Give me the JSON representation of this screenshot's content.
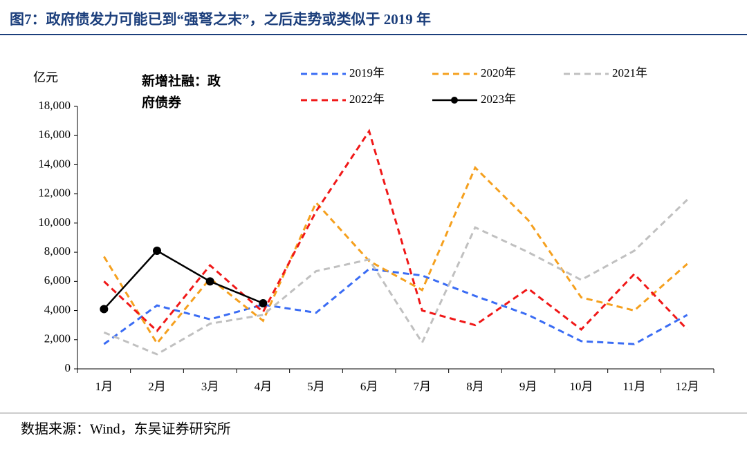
{
  "chart_data": {
    "type": "line",
    "title": "图7：政府债发力可能已到“强弩之末”，之后走势或类似于 2019 年",
    "y_label": "亿元",
    "annotation": [
      "新增社融：政",
      "府债券"
    ],
    "source": "数据来源：Wind，东吴证券研究所",
    "categories": [
      "1月",
      "2月",
      "3月",
      "4月",
      "5月",
      "6月",
      "7月",
      "8月",
      "9月",
      "10月",
      "11月",
      "12月"
    ],
    "series": [
      {
        "name": "2019年",
        "color": "#3a6cf4",
        "dashed": true,
        "markers": false,
        "values": [
          1700,
          4350,
          3400,
          4400,
          3850,
          6850,
          6400,
          5000,
          3700,
          1900,
          1700,
          3700
        ]
      },
      {
        "name": "2020年",
        "color": "#f5a01e",
        "dashed": true,
        "markers": false,
        "values": [
          7700,
          1750,
          6200,
          3300,
          11400,
          7400,
          5400,
          13800,
          10200,
          4900,
          4000,
          7200
        ]
      },
      {
        "name": "2021年",
        "color": "#c0c0c0",
        "dashed": true,
        "markers": false,
        "values": [
          2500,
          1000,
          3100,
          3700,
          6700,
          7500,
          1800,
          9700,
          8000,
          6100,
          8100,
          11600
        ]
      },
      {
        "name": "2022年",
        "color": "#f01818",
        "dashed": true,
        "markers": false,
        "values": [
          6000,
          2600,
          7100,
          3900,
          10800,
          16300,
          4000,
          3000,
          5500,
          2700,
          6500,
          2700
        ]
      },
      {
        "name": "2023年",
        "color": "#000000",
        "dashed": false,
        "markers": true,
        "values": [
          4100,
          8100,
          6000,
          4500,
          null,
          null,
          null,
          null,
          null,
          null,
          null,
          null
        ]
      }
    ],
    "ylim": [
      0,
      18000
    ],
    "yticks": [
      0,
      {
        "value": 2000,
        "label": "2,000"
      },
      {
        "value": 4000,
        "label": "4,000"
      },
      {
        "value": 6000,
        "label": "6,000"
      },
      {
        "value": 8000,
        "label": "8,000"
      },
      {
        "value": 10000,
        "label": "10,000"
      },
      {
        "value": 12000,
        "label": "12,000"
      },
      {
        "value": 14000,
        "label": "14,000"
      },
      {
        "value": 16000,
        "label": "16,000"
      },
      {
        "value": 18000,
        "label": "18,000"
      }
    ],
    "grid": false
  }
}
